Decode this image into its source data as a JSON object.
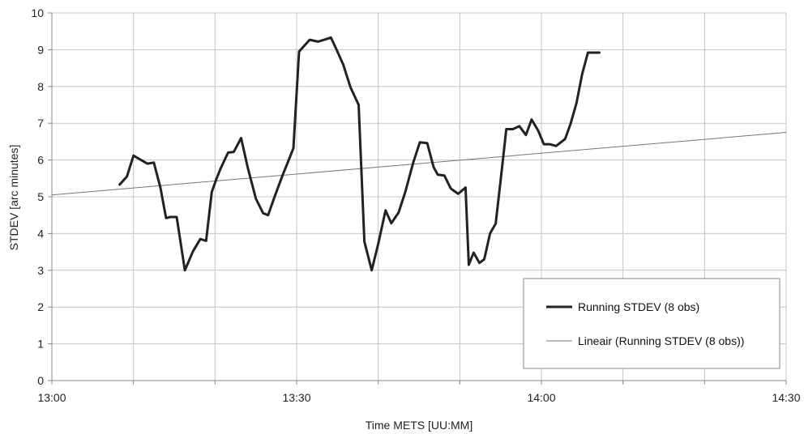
{
  "chart_data": {
    "type": "line",
    "title": "",
    "xlabel": "Time METS [UU:MM]",
    "ylabel": "STDEV [arc minutes]",
    "xlim": [
      0,
      90
    ],
    "ylim": [
      0,
      10
    ],
    "x_ticks": [
      {
        "value": 0,
        "label": "13:00"
      },
      {
        "value": 30,
        "label": "13:30"
      },
      {
        "value": 60,
        "label": "14:00"
      },
      {
        "value": 90,
        "label": "14:30"
      }
    ],
    "y_ticks": [
      0,
      1,
      2,
      3,
      4,
      5,
      6,
      7,
      8,
      9,
      10
    ],
    "grid": true,
    "legend_position": "bottom-right",
    "series": [
      {
        "name": "Running STDEV (8 obs)",
        "color": "#222222",
        "style": "thick",
        "x": [
          8.3,
          9.2,
          10.0,
          11.7,
          12.5,
          13.3,
          14.0,
          14.5,
          15.3,
          16.3,
          17.3,
          18.2,
          18.9,
          19.6,
          20.2,
          20.7,
          21.6,
          22.3,
          23.2,
          24.0,
          25.0,
          25.9,
          26.5,
          27.3,
          28.3,
          28.8,
          29.6,
          30.3,
          30.9,
          31.6,
          32.6,
          33.4,
          34.2,
          34.9,
          35.7,
          36.6,
          37.6,
          38.3,
          39.2,
          40.0,
          40.9,
          41.6,
          42.5,
          43.3,
          44.3,
          45.1,
          46.0,
          46.8,
          47.3,
          48.1,
          48.9,
          49.8,
          50.7,
          51.1,
          51.7,
          52.4,
          53.0,
          53.7,
          54.4,
          55.0,
          55.7,
          56.5,
          57.3,
          58.1,
          58.8,
          59.6,
          60.3,
          61.0,
          61.8,
          62.9,
          63.6,
          64.3,
          65.0,
          65.7,
          66.4,
          67.1
        ],
        "values": [
          5.33,
          5.55,
          6.12,
          5.9,
          5.93,
          5.25,
          4.42,
          4.45,
          4.45,
          3.0,
          3.52,
          3.85,
          3.8,
          5.13,
          5.5,
          5.78,
          6.2,
          6.22,
          6.6,
          5.8,
          4.95,
          4.55,
          4.5,
          5.0,
          5.6,
          5.87,
          6.32,
          8.95,
          9.1,
          9.27,
          9.22,
          9.27,
          9.33,
          9.0,
          8.6,
          7.98,
          7.5,
          3.78,
          3.0,
          3.72,
          4.63,
          4.28,
          4.57,
          5.12,
          5.94,
          6.48,
          6.46,
          5.8,
          5.6,
          5.58,
          5.22,
          5.08,
          5.25,
          3.15,
          3.48,
          3.2,
          3.3,
          4.0,
          4.27,
          5.45,
          6.84,
          6.84,
          6.92,
          6.68,
          7.1,
          6.8,
          6.43,
          6.43,
          6.38,
          6.57,
          7.0,
          7.55,
          8.34,
          8.92,
          8.92,
          8.92
        ]
      },
      {
        "name": "Lineair (Running STDEV (8 obs))",
        "color": "#777777",
        "style": "thin",
        "x": [
          0,
          90
        ],
        "values": [
          5.05,
          6.75
        ]
      }
    ]
  }
}
